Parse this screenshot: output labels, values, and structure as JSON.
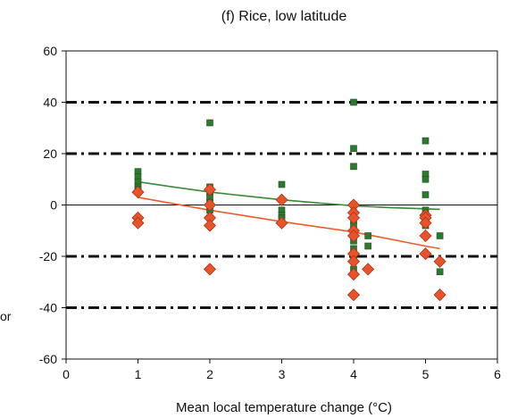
{
  "chart_data": {
    "type": "scatter",
    "title": "(f) Rice, low latitude",
    "xlabel": "Mean local temperature change (°C)",
    "ylabel_fragment": "or",
    "xlim": [
      0,
      6
    ],
    "ylim": [
      -60,
      60
    ],
    "x_ticks": [
      "0",
      "1",
      "2",
      "3",
      "4",
      "5",
      "6"
    ],
    "y_ticks": [
      "60",
      "40",
      "20",
      "0",
      "-20",
      "-40",
      "-60"
    ],
    "reference_lines": [
      40,
      20,
      -20,
      -40
    ],
    "zero_line": 0,
    "colors": {
      "green": "#2d7a2d",
      "green_edge": "#1c4f1c",
      "orange": "#e8532a",
      "orange_edge": "#a8361a",
      "green_fit": "#3a8a3a",
      "orange_fit": "#f05a2a",
      "ref_line": "#111111",
      "axis": "#111111"
    },
    "series": [
      {
        "marker": "square",
        "color_key": "green",
        "points": [
          [
            1.0,
            13
          ],
          [
            1.0,
            11
          ],
          [
            1.0,
            9
          ],
          [
            1.0,
            7
          ],
          [
            1.0,
            6
          ],
          [
            1.0,
            5
          ],
          [
            2.0,
            32
          ],
          [
            2.0,
            7
          ],
          [
            2.0,
            5
          ],
          [
            2.0,
            3
          ],
          [
            2.0,
            1
          ],
          [
            2.0,
            -2
          ],
          [
            2.0,
            -5
          ],
          [
            3.0,
            8
          ],
          [
            3.0,
            -2
          ],
          [
            3.0,
            -4
          ],
          [
            3.0,
            -5
          ],
          [
            4.0,
            40
          ],
          [
            4.0,
            22
          ],
          [
            4.0,
            15
          ],
          [
            4.0,
            0
          ],
          [
            4.0,
            -3
          ],
          [
            4.0,
            -6
          ],
          [
            4.0,
            -8
          ],
          [
            4.0,
            -10
          ],
          [
            4.0,
            -14
          ],
          [
            4.0,
            -17
          ],
          [
            4.0,
            -20
          ],
          [
            4.0,
            -25
          ],
          [
            4.2,
            -12
          ],
          [
            4.2,
            -16
          ],
          [
            5.0,
            25
          ],
          [
            5.0,
            12
          ],
          [
            5.0,
            10
          ],
          [
            5.0,
            4
          ],
          [
            5.0,
            -2
          ],
          [
            5.0,
            -4
          ],
          [
            5.0,
            -6
          ],
          [
            5.0,
            -8
          ],
          [
            5.2,
            -12
          ],
          [
            5.2,
            -26
          ]
        ]
      },
      {
        "marker": "diamond",
        "color_key": "orange",
        "points": [
          [
            1.0,
            5
          ],
          [
            1.0,
            -5
          ],
          [
            1.0,
            -7
          ],
          [
            2.0,
            6
          ],
          [
            2.0,
            0
          ],
          [
            2.0,
            -5
          ],
          [
            2.0,
            -8
          ],
          [
            2.0,
            -25
          ],
          [
            3.0,
            2
          ],
          [
            3.0,
            -7
          ],
          [
            4.0,
            0
          ],
          [
            4.0,
            -3
          ],
          [
            4.0,
            -5
          ],
          [
            4.0,
            -10
          ],
          [
            4.0,
            -12
          ],
          [
            4.0,
            -19
          ],
          [
            4.0,
            -22
          ],
          [
            4.0,
            -27
          ],
          [
            4.0,
            -35
          ],
          [
            4.2,
            -25
          ],
          [
            5.0,
            -4
          ],
          [
            5.0,
            -5
          ],
          [
            5.0,
            -7
          ],
          [
            5.0,
            -12
          ],
          [
            5.0,
            -19
          ],
          [
            5.2,
            -22
          ],
          [
            5.2,
            -35
          ]
        ]
      }
    ],
    "fits": [
      {
        "color_key": "green_fit",
        "points": [
          [
            1.0,
            9.0
          ],
          [
            1.5,
            7.0
          ],
          [
            2.0,
            5.0
          ],
          [
            2.5,
            3.5
          ],
          [
            3.0,
            2.0
          ],
          [
            3.5,
            0.8
          ],
          [
            4.0,
            -0.3
          ],
          [
            4.5,
            -1.0
          ],
          [
            5.0,
            -1.5
          ],
          [
            5.2,
            -1.7
          ]
        ]
      },
      {
        "color_key": "orange_fit",
        "points": [
          [
            1.0,
            3.0
          ],
          [
            2.0,
            -2.0
          ],
          [
            3.0,
            -6.5
          ],
          [
            4.0,
            -10.5
          ],
          [
            5.0,
            -16.0
          ],
          [
            5.2,
            -17.0
          ]
        ]
      }
    ]
  }
}
